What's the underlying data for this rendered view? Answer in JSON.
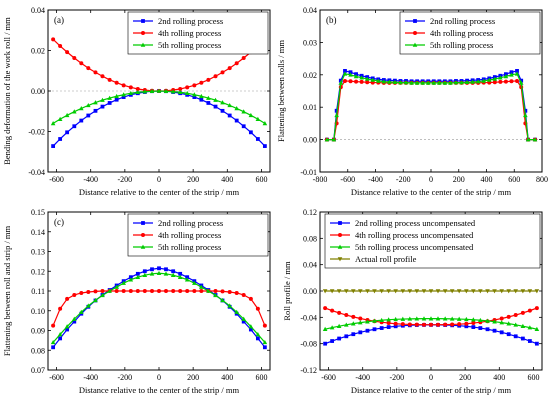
{
  "chart_data": [
    {
      "type": "line",
      "panel_label": "(a)",
      "xlabel": "Distance relative to the center of the strip / mm",
      "ylabel": "Bending deformation of the work roll / mm",
      "xlim": [
        -650,
        650
      ],
      "ylim": [
        -0.04,
        0.04
      ],
      "xticks": [
        "-600",
        "-400",
        "-200",
        "0",
        "200",
        "400",
        "600"
      ],
      "yticks": [
        "-0.04",
        "-0.02",
        "0.00",
        "0.02",
        "0.04"
      ],
      "legend_position": "top-right",
      "dashed_zero_line": true,
      "x": [
        -620,
        -579,
        -538,
        -496,
        -455,
        -414,
        -372,
        -331,
        -289,
        -248,
        -207,
        -165,
        -124,
        -83,
        -41,
        0,
        41,
        83,
        124,
        165,
        207,
        248,
        289,
        331,
        372,
        414,
        455,
        496,
        538,
        579,
        620
      ],
      "series": [
        {
          "name": "2nd rolling process",
          "color": "#0000ff",
          "marker": "square",
          "values": [
            -0.0272,
            -0.0237,
            -0.0204,
            -0.0174,
            -0.0146,
            -0.0121,
            -0.0098,
            -0.0077,
            -0.0059,
            -0.0043,
            -0.003,
            -0.0019,
            -0.0011,
            -0.0005,
            -0.0001,
            0.0,
            -0.0001,
            -0.0005,
            -0.0011,
            -0.0019,
            -0.003,
            -0.0043,
            -0.0059,
            -0.0077,
            -0.0098,
            -0.0121,
            -0.0146,
            -0.0174,
            -0.0204,
            -0.0237,
            -0.0272
          ]
        },
        {
          "name": "4th rolling process",
          "color": "#ff0000",
          "marker": "circle",
          "values": [
            0.0255,
            0.0222,
            0.0192,
            0.0163,
            0.0137,
            0.0113,
            0.0092,
            0.0073,
            0.0055,
            0.0041,
            0.0028,
            0.0018,
            0.001,
            0.0005,
            0.0001,
            0.0,
            0.0001,
            0.0005,
            0.001,
            0.0018,
            0.0028,
            0.0041,
            0.0055,
            0.0073,
            0.0092,
            0.0113,
            0.0137,
            0.0163,
            0.0192,
            0.0222,
            0.0255
          ]
        },
        {
          "name": "5th rolling process",
          "color": "#00cc00",
          "marker": "triangle",
          "values": [
            -0.016,
            -0.0139,
            -0.012,
            -0.0102,
            -0.0086,
            -0.0071,
            -0.0057,
            -0.0045,
            -0.0035,
            -0.0026,
            -0.0018,
            -0.0011,
            -0.0006,
            -0.0003,
            -0.0001,
            0.0,
            -0.0001,
            -0.0003,
            -0.0006,
            -0.0011,
            -0.0018,
            -0.0026,
            -0.0035,
            -0.0045,
            -0.0057,
            -0.0071,
            -0.0086,
            -0.0102,
            -0.012,
            -0.0139,
            -0.016
          ]
        }
      ]
    },
    {
      "type": "line",
      "panel_label": "(b)",
      "xlabel": "Distance relative to the center of the strip / mm",
      "ylabel": "Flattening between rolls / mm",
      "xlim": [
        -800,
        800
      ],
      "ylim": [
        -0.01,
        0.04
      ],
      "xticks": [
        "-800",
        "-600",
        "-400",
        "-200",
        "0",
        "200",
        "400",
        "600",
        "800"
      ],
      "yticks": [
        "-0.01",
        "0.00",
        "0.01",
        "0.02",
        "0.03",
        "0.04"
      ],
      "legend_position": "top-right",
      "dashed_zero_line": true,
      "x": [
        -750,
        -700,
        -680,
        -650,
        -620,
        -580,
        -540,
        -500,
        -460,
        -420,
        -380,
        -340,
        -300,
        -260,
        -220,
        -180,
        -140,
        -100,
        -60,
        -20,
        20,
        60,
        100,
        140,
        180,
        220,
        260,
        300,
        340,
        380,
        420,
        460,
        500,
        540,
        580,
        620,
        650,
        680,
        700,
        750
      ],
      "series": [
        {
          "name": "2nd rolling process",
          "color": "#0000ff",
          "marker": "square",
          "values": [
            0.0,
            0.0,
            0.0089,
            0.0182,
            0.0212,
            0.0208,
            0.0202,
            0.0197,
            0.0193,
            0.0189,
            0.0186,
            0.0184,
            0.0183,
            0.0182,
            0.0181,
            0.0181,
            0.018,
            0.018,
            0.018,
            0.018,
            0.018,
            0.018,
            0.018,
            0.018,
            0.0181,
            0.0181,
            0.0182,
            0.0183,
            0.0184,
            0.0186,
            0.0189,
            0.0193,
            0.0197,
            0.0202,
            0.0208,
            0.0212,
            0.0182,
            0.0089,
            0.0,
            0.0
          ]
        },
        {
          "name": "4th rolling process",
          "color": "#ff0000",
          "marker": "circle",
          "values": [
            0.0,
            0.0,
            0.005,
            0.0162,
            0.0181,
            0.018,
            0.0179,
            0.0178,
            0.0177,
            0.0176,
            0.0176,
            0.0175,
            0.0175,
            0.0175,
            0.0175,
            0.0175,
            0.0175,
            0.0175,
            0.0175,
            0.0175,
            0.0175,
            0.0175,
            0.0175,
            0.0175,
            0.0175,
            0.0175,
            0.0175,
            0.0175,
            0.0175,
            0.0176,
            0.0176,
            0.0177,
            0.0178,
            0.0179,
            0.018,
            0.0181,
            0.0162,
            0.005,
            0.0,
            0.0
          ]
        },
        {
          "name": "5th rolling process",
          "color": "#00cc00",
          "marker": "triangle",
          "values": [
            0.0,
            0.0,
            0.0075,
            0.0175,
            0.0203,
            0.02,
            0.0195,
            0.0191,
            0.0187,
            0.0184,
            0.0181,
            0.0179,
            0.0178,
            0.0177,
            0.0176,
            0.0176,
            0.0175,
            0.0175,
            0.0175,
            0.0175,
            0.0175,
            0.0175,
            0.0175,
            0.0175,
            0.0176,
            0.0176,
            0.0177,
            0.0178,
            0.0179,
            0.0181,
            0.0184,
            0.0187,
            0.0191,
            0.0195,
            0.02,
            0.0203,
            0.0175,
            0.0075,
            0.0,
            0.0
          ]
        }
      ]
    },
    {
      "type": "line",
      "panel_label": "(c)",
      "xlabel": "Distance relative to the center of the strip / mm",
      "ylabel": "Flattening between roll and strip / mm",
      "xlim": [
        -650,
        650
      ],
      "ylim": [
        0.07,
        0.15
      ],
      "xticks": [
        "-600",
        "-400",
        "-200",
        "0",
        "200",
        "400",
        "600"
      ],
      "yticks": [
        "0.07",
        "0.08",
        "0.09",
        "0.10",
        "0.11",
        "0.12",
        "0.13",
        "0.14",
        "0.15"
      ],
      "legend_position": "top-right",
      "dashed_zero_line": false,
      "x": [
        -620,
        -579,
        -538,
        -496,
        -455,
        -414,
        -372,
        -331,
        -289,
        -248,
        -207,
        -165,
        -124,
        -83,
        -41,
        0,
        41,
        83,
        124,
        165,
        207,
        248,
        289,
        331,
        372,
        414,
        455,
        496,
        538,
        579,
        620
      ],
      "series": [
        {
          "name": "2nd rolling process",
          "color": "#0000ff",
          "marker": "square",
          "values": [
            0.0815,
            0.086,
            0.0905,
            0.0945,
            0.0985,
            0.102,
            0.1052,
            0.108,
            0.1105,
            0.1128,
            0.115,
            0.117,
            0.1187,
            0.12,
            0.121,
            0.1215,
            0.121,
            0.12,
            0.1187,
            0.117,
            0.115,
            0.1128,
            0.1105,
            0.108,
            0.1052,
            0.102,
            0.0985,
            0.0945,
            0.0905,
            0.086,
            0.0815
          ]
        },
        {
          "name": "4th rolling process",
          "color": "#ff0000",
          "marker": "circle",
          "values": [
            0.0925,
            0.101,
            0.106,
            0.108,
            0.109,
            0.1095,
            0.1098,
            0.11,
            0.11,
            0.11,
            0.11,
            0.11,
            0.11,
            0.11,
            0.11,
            0.11,
            0.11,
            0.11,
            0.11,
            0.11,
            0.11,
            0.11,
            0.11,
            0.11,
            0.1098,
            0.1095,
            0.109,
            0.108,
            0.106,
            0.101,
            0.0925
          ]
        },
        {
          "name": "5th rolling process",
          "color": "#00cc00",
          "marker": "triangle",
          "values": [
            0.084,
            0.088,
            0.092,
            0.0958,
            0.0993,
            0.1025,
            0.1053,
            0.1078,
            0.11,
            0.112,
            0.114,
            0.1157,
            0.117,
            0.118,
            0.1187,
            0.119,
            0.1187,
            0.118,
            0.117,
            0.1157,
            0.114,
            0.112,
            0.11,
            0.1078,
            0.1053,
            0.1025,
            0.0993,
            0.0958,
            0.092,
            0.088,
            0.084
          ]
        }
      ]
    },
    {
      "type": "line",
      "panel_label": "(d)",
      "xlabel": "Distance relative to the center of the strip / mm",
      "ylabel": "Roll profile / mm",
      "xlim": [
        -650,
        650
      ],
      "ylim": [
        -0.12,
        0.12
      ],
      "xticks": [
        "-600",
        "-400",
        "-200",
        "0",
        "200",
        "400",
        "600"
      ],
      "yticks": [
        "-0.12",
        "-0.08",
        "-0.04",
        "0.00",
        "0.04",
        "0.08",
        "0.12"
      ],
      "legend_position": "top-right",
      "dashed_zero_line": false,
      "x": [
        -620,
        -579,
        -538,
        -496,
        -455,
        -414,
        -372,
        -331,
        -289,
        -248,
        -207,
        -165,
        -124,
        -83,
        -41,
        0,
        41,
        83,
        124,
        165,
        207,
        248,
        289,
        331,
        372,
        414,
        455,
        496,
        538,
        579,
        620
      ],
      "series": [
        {
          "name": "2nd rolling process uncompensated",
          "color": "#0000ff",
          "marker": "square",
          "values": [
            -0.08,
            -0.076,
            -0.0722,
            -0.0688,
            -0.0656,
            -0.0628,
            -0.0603,
            -0.0581,
            -0.0563,
            -0.0548,
            -0.0536,
            -0.0527,
            -0.0521,
            -0.0517,
            -0.0515,
            -0.0515,
            -0.0515,
            -0.0517,
            -0.0521,
            -0.0527,
            -0.0536,
            -0.0548,
            -0.0563,
            -0.0581,
            -0.0603,
            -0.0628,
            -0.0656,
            -0.0688,
            -0.0722,
            -0.076,
            -0.08
          ]
        },
        {
          "name": "4th rolling process uncompensated",
          "color": "#ff0000",
          "marker": "circle",
          "values": [
            -0.026,
            -0.0298,
            -0.0333,
            -0.0365,
            -0.0393,
            -0.0418,
            -0.044,
            -0.0459,
            -0.0474,
            -0.0487,
            -0.0497,
            -0.0504,
            -0.0508,
            -0.0511,
            -0.0512,
            -0.0512,
            -0.0512,
            -0.0511,
            -0.0508,
            -0.0504,
            -0.0497,
            -0.0487,
            -0.0474,
            -0.0459,
            -0.044,
            -0.0418,
            -0.0393,
            -0.0365,
            -0.0333,
            -0.0298,
            -0.026
          ]
        },
        {
          "name": "5th rolling process uncompensated",
          "color": "#00cc00",
          "marker": "triangle",
          "values": [
            -0.058,
            -0.0556,
            -0.0534,
            -0.0514,
            -0.0496,
            -0.048,
            -0.0466,
            -0.0454,
            -0.0444,
            -0.0436,
            -0.043,
            -0.0426,
            -0.0423,
            -0.0421,
            -0.042,
            -0.042,
            -0.042,
            -0.0421,
            -0.0423,
            -0.0426,
            -0.043,
            -0.0436,
            -0.0444,
            -0.0454,
            -0.0466,
            -0.048,
            -0.0496,
            -0.0514,
            -0.0534,
            -0.0556,
            -0.058
          ]
        },
        {
          "name": "Actual roll profile",
          "color": "#808000",
          "marker": "triangle-down",
          "values": [
            0,
            0,
            0,
            0,
            0,
            0,
            0,
            0,
            0,
            0,
            0,
            0,
            0,
            0,
            0,
            0,
            0,
            0,
            0,
            0,
            0,
            0,
            0,
            0,
            0,
            0,
            0,
            0,
            0,
            0,
            0
          ]
        }
      ]
    }
  ]
}
